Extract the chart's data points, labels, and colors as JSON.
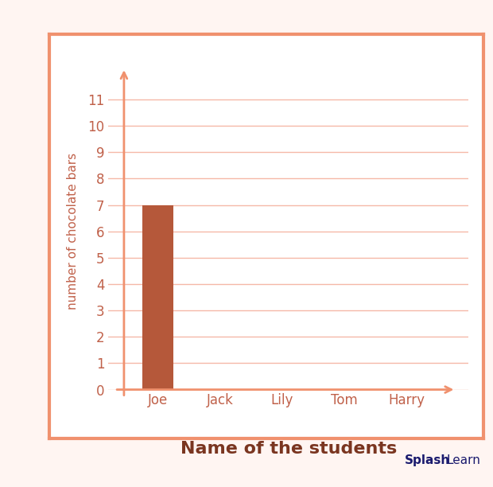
{
  "categories": [
    "Joe",
    "Jack",
    "Lily",
    "Tom",
    "Harry"
  ],
  "values": [
    7,
    0,
    0,
    0,
    0
  ],
  "bar_color": "#b5583a",
  "axis_color": "#f0916e",
  "grid_color": "#f5b8a8",
  "tick_label_color": "#c0614a",
  "xlabel": "Name of the students",
  "ylabel": "number of chocolate bars",
  "xlabel_color": "#7a3520",
  "ylabel_color": "#c0614a",
  "yticks": [
    0,
    1,
    2,
    3,
    4,
    5,
    6,
    7,
    8,
    9,
    10,
    11
  ],
  "ylim": [
    0,
    12
  ],
  "background_color": "#ffffff",
  "figure_bg": "#fff5f2",
  "border_color": "#f0916e",
  "bar_width": 0.5,
  "xlabel_fontsize": 16,
  "ylabel_fontsize": 11,
  "tick_fontsize": 12
}
